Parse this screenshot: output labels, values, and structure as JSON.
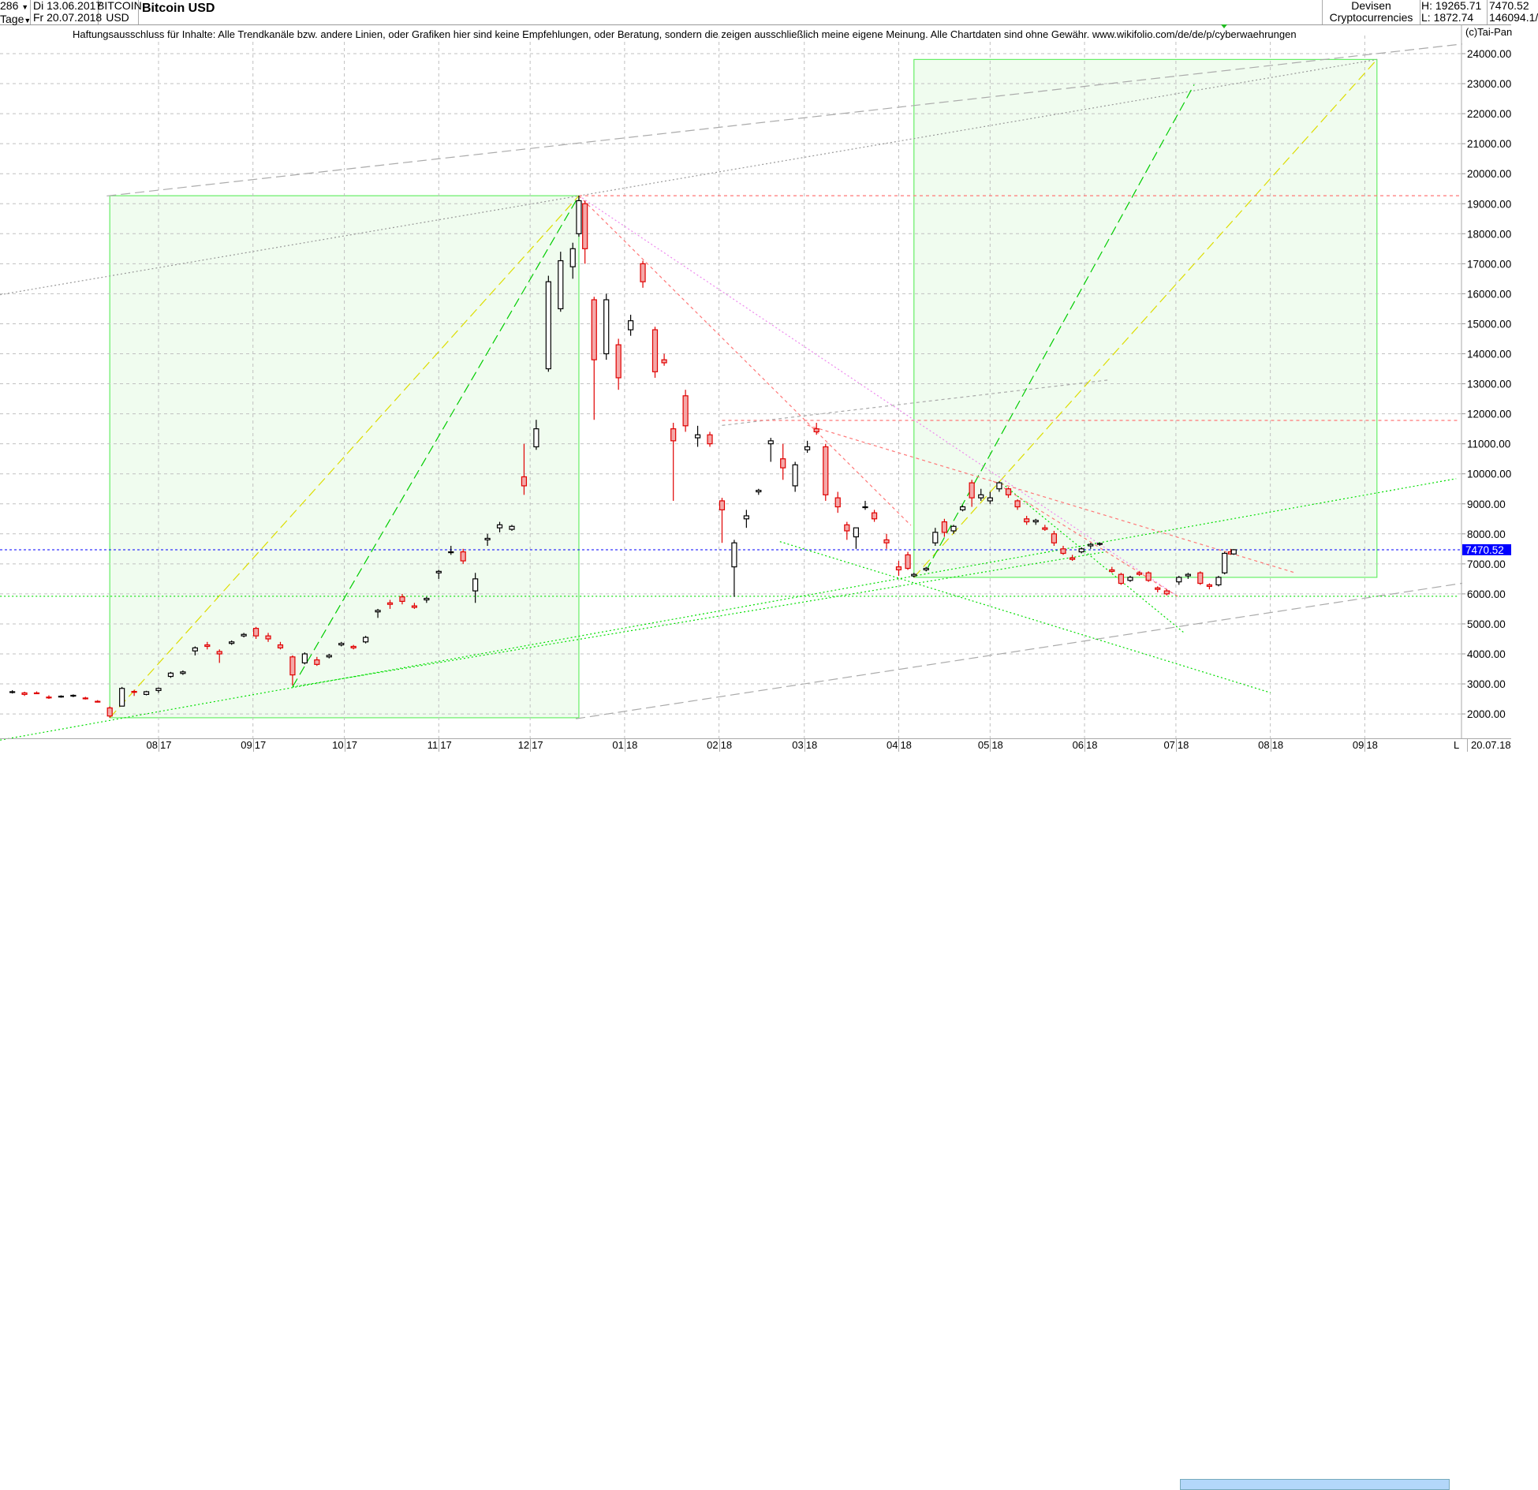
{
  "header": {
    "count": "286",
    "period": "Tage",
    "from_date": "Di 13.06.2017",
    "to_date": "Fr 20.07.2018",
    "symbol_line1": "BITCOIN",
    "symbol_line2": "USD",
    "title": "Bitcoin USD",
    "category_line1": "Devisen",
    "category_line2": "Cryptocurrencies",
    "high": "H: 19265.71",
    "low": "L: 1872.74",
    "last": "7470.52",
    "volume": "146094.1/"
  },
  "disclaimer": "Haftungsausschluss für Inhalte: Alle Trendkanäle bzw. andere Linien, oder Grafiken hier sind keine Empfehlungen, oder Beratung, sondern die zeigen ausschließlich meine eigene Meinung. Alle Chartdaten sind ohne Gewähr.  www.wikifolio.com/de/de/p/cyberwaehrungen",
  "copyright": "(c)Tai-Pan",
  "footer": {
    "scroll_marker": "L",
    "current_date": "20.07.18"
  },
  "chart_data": {
    "type": "candlestick",
    "title": "Bitcoin USD",
    "ylim": [
      1000,
      25000
    ],
    "yticks": [
      2000,
      3000,
      4000,
      5000,
      6000,
      7000,
      8000,
      9000,
      10000,
      11000,
      12000,
      13000,
      14000,
      15000,
      16000,
      17000,
      18000,
      19000,
      20000,
      21000,
      22000,
      23000,
      24000
    ],
    "ytick_labels": [
      "2000.00",
      "3000.00",
      "4000.00",
      "5000.00",
      "6000.00",
      "7000.00",
      "8000.00",
      "9000.00",
      "10000.00",
      "11000.00",
      "12000.00",
      "13000.00",
      "14000.00",
      "15000.00",
      "16000.00",
      "17000.00",
      "18000.00",
      "19000.00",
      "20000.00",
      "21000.00",
      "22000.00",
      "23000.00",
      "24000.00"
    ],
    "xlim": [
      "2017-06-10",
      "2018-10-02"
    ],
    "xticks": [
      "2017-08-01",
      "2017-09-01",
      "2017-10-01",
      "2017-11-01",
      "2017-12-01",
      "2018-01-01",
      "2018-02-01",
      "2018-03-01",
      "2018-04-01",
      "2018-05-01",
      "2018-06-01",
      "2018-07-01",
      "2018-08-01",
      "2018-09-01"
    ],
    "xtick_labels": [
      [
        "08",
        "17"
      ],
      [
        "09",
        "17"
      ],
      [
        "10",
        "17"
      ],
      [
        "11",
        "17"
      ],
      [
        "12",
        "17"
      ],
      [
        "01",
        "18"
      ],
      [
        "02",
        "18"
      ],
      [
        "03",
        "18"
      ],
      [
        "04",
        "18"
      ],
      [
        "05",
        "18"
      ],
      [
        "06",
        "18"
      ],
      [
        "07",
        "18"
      ],
      [
        "08",
        "18"
      ],
      [
        "09",
        "18"
      ]
    ],
    "grid": true,
    "last_price": 7470.52,
    "last_price_label": "7470.52",
    "colors": {
      "up_body": "#ffffff",
      "up_border": "#000000",
      "down_body": "#f4a8a8",
      "down_border": "#e00000",
      "last_price": "#0000ff",
      "label_bg": "#0000ff"
    },
    "candles": [
      [
        "2017-06-14",
        2720,
        2790,
        2680,
        2740
      ],
      [
        "2017-06-18",
        2700,
        2740,
        2600,
        2650
      ],
      [
        "2017-06-22",
        2700,
        2750,
        2660,
        2690
      ],
      [
        "2017-06-26",
        2560,
        2620,
        2500,
        2540
      ],
      [
        "2017-06-30",
        2580,
        2620,
        2540,
        2590
      ],
      [
        "2017-07-04",
        2600,
        2650,
        2560,
        2620
      ],
      [
        "2017-07-08",
        2530,
        2570,
        2480,
        2510
      ],
      [
        "2017-07-12",
        2420,
        2460,
        2380,
        2400
      ],
      [
        "2017-07-16",
        2200,
        2250,
        1873,
        1930
      ],
      [
        "2017-07-20",
        2260,
        2900,
        2250,
        2850
      ],
      [
        "2017-07-24",
        2750,
        2800,
        2600,
        2720
      ],
      [
        "2017-07-28",
        2650,
        2770,
        2620,
        2740
      ],
      [
        "2017-08-01",
        2780,
        2880,
        2700,
        2850
      ],
      [
        "2017-08-05",
        3250,
        3400,
        3200,
        3360
      ],
      [
        "2017-08-09",
        3350,
        3450,
        3300,
        3400
      ],
      [
        "2017-08-13",
        4100,
        4250,
        3950,
        4200
      ],
      [
        "2017-08-17",
        4300,
        4400,
        4150,
        4250
      ],
      [
        "2017-08-21",
        4080,
        4150,
        3700,
        4000
      ],
      [
        "2017-08-25",
        4350,
        4450,
        4300,
        4400
      ],
      [
        "2017-08-29",
        4600,
        4700,
        4550,
        4650
      ],
      [
        "2017-09-02",
        4850,
        4900,
        4500,
        4600
      ],
      [
        "2017-09-06",
        4600,
        4700,
        4400,
        4500
      ],
      [
        "2017-09-10",
        4300,
        4400,
        4150,
        4200
      ],
      [
        "2017-09-14",
        3900,
        3950,
        2950,
        3300
      ],
      [
        "2017-09-18",
        3700,
        4050,
        3650,
        4000
      ],
      [
        "2017-09-22",
        3800,
        3900,
        3600,
        3650
      ],
      [
        "2017-09-26",
        3900,
        4000,
        3850,
        3950
      ],
      [
        "2017-09-30",
        4300,
        4400,
        4250,
        4350
      ],
      [
        "2017-10-04",
        4250,
        4300,
        4150,
        4200
      ],
      [
        "2017-10-08",
        4400,
        4600,
        4350,
        4550
      ],
      [
        "2017-10-12",
        5400,
        5500,
        5200,
        5450
      ],
      [
        "2017-10-16",
        5700,
        5800,
        5500,
        5650
      ],
      [
        "2017-10-20",
        5900,
        6000,
        5650,
        5750
      ],
      [
        "2017-10-24",
        5600,
        5700,
        5500,
        5550
      ],
      [
        "2017-10-28",
        5800,
        5900,
        5700,
        5850
      ],
      [
        "2017-11-01",
        6700,
        6800,
        6500,
        6750
      ],
      [
        "2017-11-05",
        7400,
        7600,
        7300,
        7400
      ],
      [
        "2017-11-09",
        7400,
        7500,
        7000,
        7100
      ],
      [
        "2017-11-13",
        6100,
        6700,
        5700,
        6500
      ],
      [
        "2017-11-17",
        7800,
        8000,
        7600,
        7850
      ],
      [
        "2017-11-21",
        8200,
        8400,
        8050,
        8300
      ],
      [
        "2017-11-25",
        8150,
        8300,
        8100,
        8250
      ],
      [
        "2017-11-29",
        9900,
        11000,
        9300,
        9600
      ],
      [
        "2017-12-03",
        10900,
        11800,
        10800,
        11500
      ],
      [
        "2017-12-07",
        13500,
        16600,
        13400,
        16400
      ],
      [
        "2017-12-11",
        15500,
        17400,
        15400,
        17100
      ],
      [
        "2017-12-15",
        16900,
        17700,
        16500,
        17500
      ],
      [
        "2017-12-17",
        18000,
        19265.71,
        17900,
        19100
      ],
      [
        "2017-12-19",
        19000,
        19100,
        17000,
        17500
      ],
      [
        "2017-12-22",
        15800,
        15900,
        11800,
        13800
      ],
      [
        "2017-12-26",
        14000,
        16000,
        13800,
        15800
      ],
      [
        "2017-12-30",
        14300,
        14500,
        12800,
        13200
      ],
      [
        "2018-01-03",
        14800,
        15300,
        14600,
        15100
      ],
      [
        "2018-01-07",
        17000,
        17100,
        16200,
        16400
      ],
      [
        "2018-01-11",
        14800,
        14900,
        13200,
        13400
      ],
      [
        "2018-01-14",
        13800,
        14000,
        13600,
        13700
      ],
      [
        "2018-01-17",
        11500,
        11700,
        9100,
        11100
      ],
      [
        "2018-01-21",
        12600,
        12800,
        11400,
        11600
      ],
      [
        "2018-01-25",
        11200,
        11600,
        10900,
        11300
      ],
      [
        "2018-01-29",
        11300,
        11400,
        10900,
        11000
      ],
      [
        "2018-02-02",
        9100,
        9200,
        7700,
        8800
      ],
      [
        "2018-02-06",
        6900,
        7800,
        5900,
        7700
      ],
      [
        "2018-02-10",
        8500,
        8800,
        8200,
        8600
      ],
      [
        "2018-02-14",
        9400,
        9500,
        9300,
        9450
      ],
      [
        "2018-02-18",
        11000,
        11200,
        10400,
        11100
      ],
      [
        "2018-02-22",
        10500,
        11000,
        9800,
        10200
      ],
      [
        "2018-02-26",
        9600,
        10400,
        9400,
        10300
      ],
      [
        "2018-03-02",
        10800,
        11100,
        10700,
        10900
      ],
      [
        "2018-03-05",
        11500,
        11700,
        11300,
        11400
      ],
      [
        "2018-03-08",
        10900,
        11000,
        9100,
        9300
      ],
      [
        "2018-03-12",
        9200,
        9400,
        8700,
        8900
      ],
      [
        "2018-03-15",
        8300,
        8400,
        7800,
        8100
      ],
      [
        "2018-03-18",
        7900,
        8200,
        7500,
        8200
      ],
      [
        "2018-03-21",
        8900,
        9100,
        8800,
        8900
      ],
      [
        "2018-03-24",
        8700,
        8800,
        8400,
        8500
      ],
      [
        "2018-03-28",
        7800,
        8000,
        7500,
        7700
      ],
      [
        "2018-04-01",
        6900,
        7100,
        6600,
        6800
      ],
      [
        "2018-04-04",
        7300,
        7400,
        6800,
        6850
      ],
      [
        "2018-04-06",
        6600,
        6700,
        6550,
        6650
      ],
      [
        "2018-04-10",
        6800,
        6900,
        6750,
        6850
      ],
      [
        "2018-04-13",
        7700,
        8200,
        7600,
        8050
      ],
      [
        "2018-04-16",
        8400,
        8500,
        7900,
        8050
      ],
      [
        "2018-04-19",
        8100,
        8300,
        8000,
        8250
      ],
      [
        "2018-04-22",
        8800,
        8950,
        8750,
        8900
      ],
      [
        "2018-04-25",
        9700,
        9800,
        8900,
        9200
      ],
      [
        "2018-04-28",
        9200,
        9500,
        9100,
        9300
      ],
      [
        "2018-05-01",
        9100,
        9400,
        9000,
        9200
      ],
      [
        "2018-05-04",
        9500,
        9750,
        9400,
        9700
      ],
      [
        "2018-05-07",
        9500,
        9550,
        9200,
        9300
      ],
      [
        "2018-05-10",
        9100,
        9150,
        8800,
        8900
      ],
      [
        "2018-05-13",
        8500,
        8600,
        8300,
        8400
      ],
      [
        "2018-05-16",
        8400,
        8500,
        8300,
        8450
      ],
      [
        "2018-05-19",
        8200,
        8300,
        8100,
        8150
      ],
      [
        "2018-05-22",
        8000,
        8100,
        7600,
        7700
      ],
      [
        "2018-05-25",
        7500,
        7600,
        7300,
        7350
      ],
      [
        "2018-05-28",
        7200,
        7300,
        7100,
        7150
      ],
      [
        "2018-05-31",
        7400,
        7550,
        7350,
        7500
      ],
      [
        "2018-06-03",
        7600,
        7700,
        7500,
        7650
      ],
      [
        "2018-06-06",
        7650,
        7700,
        7600,
        7680
      ],
      [
        "2018-06-10",
        6800,
        6900,
        6700,
        6750
      ],
      [
        "2018-06-13",
        6650,
        6700,
        6300,
        6350
      ],
      [
        "2018-06-16",
        6450,
        6600,
        6400,
        6550
      ],
      [
        "2018-06-19",
        6700,
        6750,
        6600,
        6650
      ],
      [
        "2018-06-22",
        6700,
        6750,
        6400,
        6450
      ],
      [
        "2018-06-25",
        6200,
        6250,
        6050,
        6150
      ],
      [
        "2018-06-28",
        6100,
        6150,
        5950,
        6000
      ],
      [
        "2018-07-02",
        6400,
        6600,
        6300,
        6550
      ],
      [
        "2018-07-05",
        6600,
        6700,
        6500,
        6650
      ],
      [
        "2018-07-09",
        6700,
        6750,
        6300,
        6350
      ],
      [
        "2018-07-12",
        6300,
        6350,
        6150,
        6250
      ],
      [
        "2018-07-15",
        6300,
        6600,
        6250,
        6550
      ],
      [
        "2018-07-17",
        6700,
        7400,
        6650,
        7350
      ],
      [
        "2018-07-19",
        7400,
        7500,
        7300,
        7330
      ],
      [
        "2018-07-20",
        7330,
        7490,
        7300,
        7470.52
      ]
    ],
    "boxes": [
      {
        "from": [
          "2017-07-16",
          1872.74
        ],
        "to": [
          "2017-12-17",
          19265.71
        ],
        "color": "#66ee66",
        "fill": "#f0fcef"
      },
      {
        "from": [
          "2018-04-06",
          6550
        ],
        "to": [
          "2018-09-05",
          23806
        ],
        "color": "#66ee66",
        "fill": "#f0fcef"
      }
    ],
    "lines": [
      {
        "from": [
          "2017-07-15",
          19258
        ],
        "to": [
          "2018-10-03",
          24320
        ],
        "color": "#aaaaaa",
        "style": "longdash"
      },
      {
        "from": [
          "2017-06-10",
          15967
        ],
        "to": [
          "2018-09-05",
          23806
        ],
        "color": "#999999",
        "style": "dot"
      },
      {
        "from": [
          "2017-12-16",
          1838
        ],
        "to": [
          "2018-10-03",
          6354
        ],
        "color": "#aaaaaa",
        "style": "longdash"
      },
      {
        "from": [
          "2018-02-02",
          11612
        ],
        "to": [
          "2018-06-09",
          13128
        ],
        "color": "#aaaaaa",
        "style": "dash"
      },
      {
        "from": [
          "2017-07-16",
          1872.74
        ],
        "to": [
          "2017-12-17",
          19265.71
        ],
        "color": "#dddd00",
        "style": "longdash"
      },
      {
        "from": [
          "2017-09-14",
          2900
        ],
        "to": [
          "2017-12-17",
          19265.71
        ],
        "color": "#00cc00",
        "style": "longdash"
      },
      {
        "from": [
          "2018-04-06",
          6550
        ],
        "to": [
          "2018-09-05",
          23806
        ],
        "color": "#dddd00",
        "style": "longdash"
      },
      {
        "from": [
          "2018-04-10",
          6775
        ],
        "to": [
          "2018-07-07",
          22968
        ],
        "color": "#00cc00",
        "style": "longdash"
      },
      {
        "from": [
          "2017-06-10",
          1128
        ],
        "to": [
          "2018-10-01",
          9838
        ],
        "color": "#00dd00",
        "style": "dot"
      },
      {
        "from": [
          "2017-09-14",
          2900
        ],
        "to": [
          "2018-06-09",
          7418
        ],
        "color": "#00dd00",
        "style": "dot"
      },
      {
        "from": [
          "2018-02-21",
          7741
        ],
        "to": [
          "2018-08-01",
          2708
        ],
        "color": "#00dd00",
        "style": "dot"
      },
      {
        "from": [
          "2018-05-05",
          9677
        ],
        "to": [
          "2018-07-04",
          4677
        ],
        "color": "#00dd00",
        "style": "dot"
      },
      {
        "from": [
          "2017-06-10",
          5920
        ],
        "to": [
          "2018-10-02",
          5920
        ],
        "color": "#00dd00",
        "style": "dot"
      },
      {
        "from": [
          "2018-02-02",
          11780
        ],
        "to": [
          "2018-10-02",
          11780
        ],
        "color": "#ff7777",
        "style": "dash"
      },
      {
        "from": [
          "2017-12-17",
          19265.71
        ],
        "to": [
          "2018-10-02",
          19265.71
        ],
        "color": "#ff7777",
        "style": "dash"
      },
      {
        "from": [
          "2017-12-17",
          19265.71
        ],
        "to": [
          "2018-07-02",
          5890
        ],
        "color": "#ee88ee",
        "style": "dot"
      },
      {
        "from": [
          "2017-12-17",
          19265.71
        ],
        "to": [
          "2018-04-05",
          8283
        ],
        "color": "#ff7777",
        "style": "dash"
      },
      {
        "from": [
          "2018-03-02",
          11620
        ],
        "to": [
          "2018-08-09",
          6707
        ],
        "color": "#ff7777",
        "style": "dash"
      },
      {
        "from": [
          "2018-05-02",
          9755
        ],
        "to": [
          "2018-07-02",
          5890
        ],
        "color": "#ff7777",
        "style": "dash"
      }
    ]
  }
}
